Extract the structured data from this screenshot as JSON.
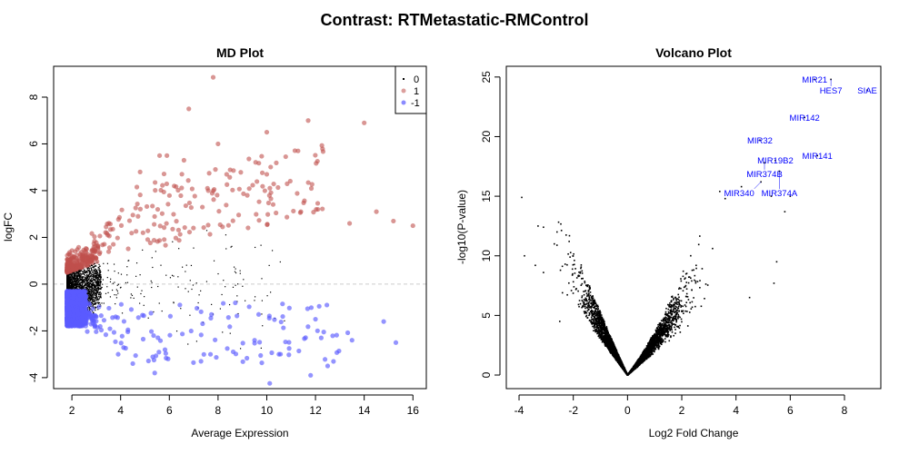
{
  "title": "Contrast: RTMetastatic-RMControl",
  "chart_data": [
    {
      "type": "scatter",
      "title": "MD Plot",
      "xlabel": "Average Expression",
      "ylabel": "logFC",
      "xlim": [
        1.25,
        16.55
      ],
      "ylim": [
        -4.47,
        9.32
      ],
      "xticks": [
        "2",
        "4",
        "6",
        "8",
        "10",
        "12",
        "14",
        "16"
      ],
      "yticks": [
        "-4",
        "-2",
        "0",
        "2",
        "4",
        "6",
        "8"
      ],
      "reference_line": {
        "y": 0,
        "style": "dashed",
        "color": "#cccccc"
      },
      "legend": {
        "placement": "top-right",
        "entries": [
          "0",
          "1",
          "-1"
        ]
      },
      "colors": {
        "0": "#000000",
        "1": "#c0504d",
        "-1": "#5a5aff"
      },
      "highlight_points": {
        "up": [
          [
            7.8,
            8.85
          ],
          [
            6.8,
            7.5
          ],
          [
            11.7,
            7.0
          ],
          [
            14,
            6.9
          ],
          [
            10,
            6.5
          ],
          [
            5.6,
            5.5
          ],
          [
            5.9,
            5.5
          ],
          [
            8,
            6.0
          ],
          [
            6.6,
            5.3
          ],
          [
            10,
            4.7
          ],
          [
            4.8,
            4.8
          ],
          [
            14.5,
            3.1
          ],
          [
            16,
            2.5
          ],
          [
            15.2,
            2.7
          ],
          [
            13.4,
            2.6
          ],
          [
            12.1,
            3.2
          ],
          [
            11.4,
            3.1
          ],
          [
            7.6,
            4.0
          ],
          [
            9.2,
            3.8
          ],
          [
            6.2,
            4.2
          ]
        ],
        "down": [
          [
            11.8,
            -3.9
          ],
          [
            12.5,
            -3.5
          ],
          [
            15.3,
            -2.5
          ],
          [
            14.8,
            -1.6
          ],
          [
            5.4,
            -3.8
          ],
          [
            4.5,
            -3.4
          ],
          [
            9.5,
            -2.4
          ],
          [
            13.5,
            -2.4
          ],
          [
            12,
            -1.5
          ],
          [
            7.3,
            -3.3
          ],
          [
            10.5,
            -3.0
          ],
          [
            3.9,
            -3.0
          ]
        ]
      }
    },
    {
      "type": "scatter",
      "title": "Volcano Plot",
      "xlabel": "Log2 Fold Change",
      "ylabel": "-log10(P-value)",
      "xlim": [
        -4.47,
        9.34
      ],
      "ylim": [
        -1.14,
        25.9
      ],
      "xticks": [
        "-4",
        "-2",
        "0",
        "2",
        "4",
        "6",
        "8"
      ],
      "yticks": [
        "0",
        "5",
        "10",
        "15",
        "20",
        "25"
      ],
      "label_color": "#0000ff",
      "labeled_points": [
        {
          "label": "MIR21",
          "x": 6.9,
          "y": 24.8
        },
        {
          "label": "HES7",
          "x": 7.5,
          "y": 24.8
        },
        {
          "label": "SIAE",
          "x": 8.84,
          "y": 23.9
        },
        {
          "label": "MIR142",
          "x": 6.53,
          "y": 21.6
        },
        {
          "label": "MIR32",
          "x": 4.88,
          "y": 19.7
        },
        {
          "label": "MIR19B2",
          "x": 5.45,
          "y": 18.0
        },
        {
          "label": "MIR374B",
          "x": 5.05,
          "y": 17.8
        },
        {
          "label": "MIR141",
          "x": 7.0,
          "y": 18.4
        },
        {
          "label": "MIR374A",
          "x": 5.6,
          "y": 17.1
        },
        {
          "label": "MIR340",
          "x": 4.92,
          "y": 16.2
        }
      ],
      "highlight_points": [
        [
          -3.9,
          14.9
        ],
        [
          -3.3,
          12.5
        ],
        [
          -3.1,
          12.4
        ],
        [
          -3.8,
          10
        ],
        [
          -2.6,
          12.0
        ],
        [
          -2.7,
          11
        ],
        [
          -3.4,
          9.2
        ],
        [
          -3.1,
          8.6
        ],
        [
          -2.3,
          9.3
        ],
        [
          -2.4,
          6.9
        ],
        [
          -2.5,
          4.5
        ],
        [
          4.5,
          6.5
        ],
        [
          5.4,
          7.7
        ],
        [
          5.5,
          9.5
        ],
        [
          6,
          15
        ],
        [
          5.3,
          15
        ],
        [
          4.2,
          15.8
        ],
        [
          3.4,
          15.4
        ],
        [
          3.6,
          14.8
        ],
        [
          5.8,
          13.7
        ]
      ]
    }
  ]
}
